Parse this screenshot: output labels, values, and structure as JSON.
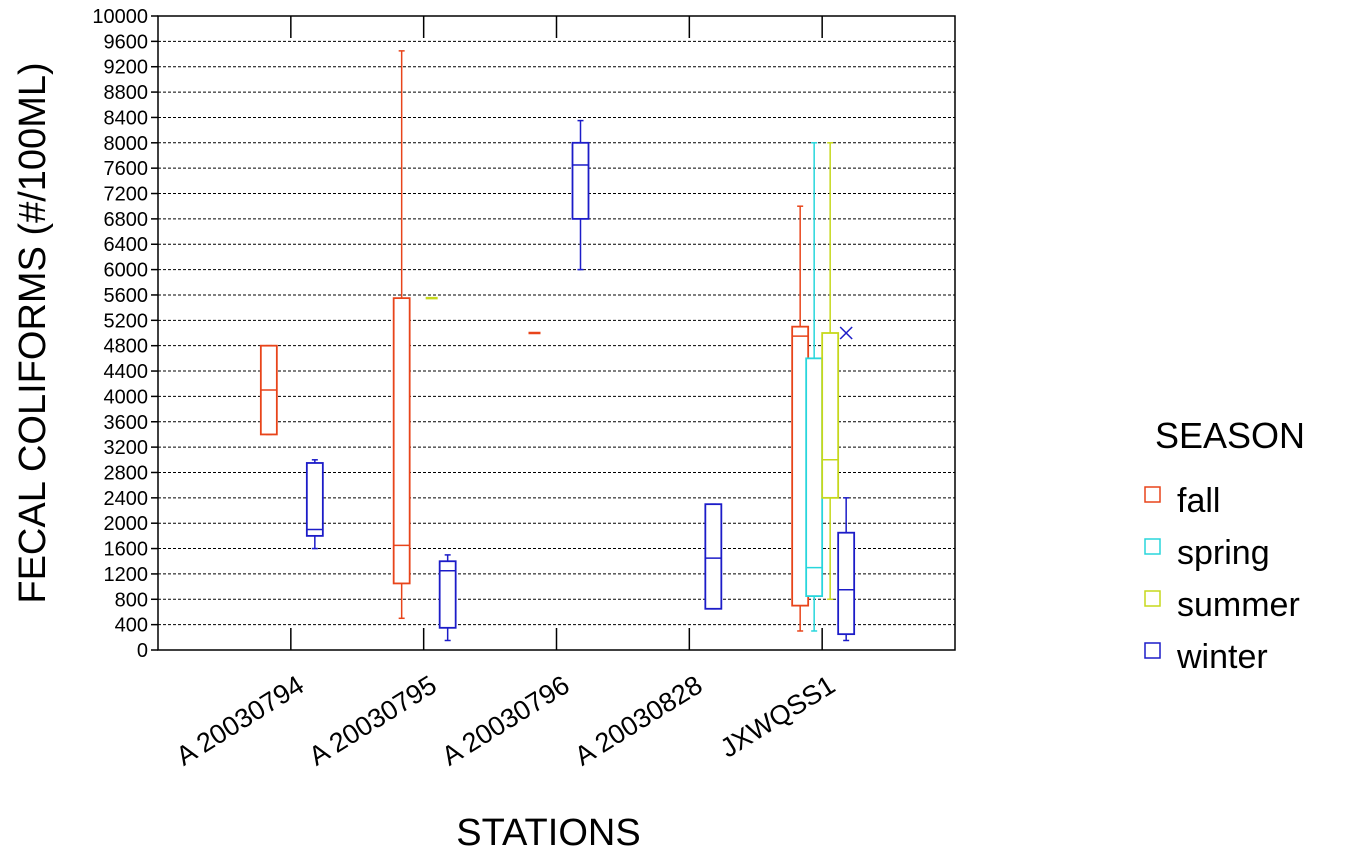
{
  "chart_data": {
    "type": "boxplot",
    "xlabel": "STATIONS",
    "ylabel": "FECAL COLIFORMS (#/100ML)",
    "ylim": [
      0,
      10000
    ],
    "yticks": [
      0,
      400,
      800,
      1200,
      1600,
      2000,
      2400,
      2800,
      3200,
      3600,
      4000,
      4400,
      4800,
      5200,
      5600,
      6000,
      6400,
      6800,
      7200,
      7600,
      8000,
      8400,
      8800,
      9200,
      9600,
      10000
    ],
    "ytick_labels": [
      "0",
      "400",
      "800",
      "1200",
      "1600",
      "2000",
      "2400",
      "2800",
      "3200",
      "3600",
      "4000",
      "4400",
      "4800",
      "5200",
      "5600",
      "6000",
      "6400",
      "6800",
      "7200",
      "7600",
      "8000",
      "8400",
      "8800",
      "9200",
      "9600",
      "10000"
    ],
    "categories": [
      "A 20030794",
      "A 20030795",
      "A 20030796",
      "A 20030828",
      "JXWQSS1"
    ],
    "grid": "horizontal dashed",
    "legend": {
      "title": "SEASON",
      "placement": "right",
      "entries": [
        {
          "name": "fall",
          "color": "#e8441a"
        },
        {
          "name": "spring",
          "color": "#28d6dc"
        },
        {
          "name": "summer",
          "color": "#c6d81c"
        },
        {
          "name": "winter",
          "color": "#1c1cc8"
        }
      ]
    },
    "series": [
      {
        "name": "fall",
        "color": "#e8441a",
        "boxes": [
          {
            "station": "A 20030794",
            "min": 3400,
            "q1": 3400,
            "median": 4100,
            "q3": 4800,
            "max": 4800
          },
          {
            "station": "A 20030795",
            "min": 500,
            "q1": 1050,
            "median": 1650,
            "q3": 5550,
            "max": 9450
          },
          {
            "station": "A 20030796",
            "min": 5000,
            "q1": 5000,
            "median": 5000,
            "q3": 5000,
            "max": 5000
          },
          {
            "station": "JXWQSS1",
            "min": 300,
            "q1": 700,
            "median": 4950,
            "q3": 5100,
            "max": 7000
          }
        ]
      },
      {
        "name": "spring",
        "color": "#28d6dc",
        "boxes": [
          {
            "station": "JXWQSS1",
            "min": 300,
            "q1": 850,
            "median": 1300,
            "q3": 4600,
            "max": 8000
          }
        ]
      },
      {
        "name": "summer",
        "color": "#c6d81c",
        "boxes": [
          {
            "station": "A 20030795",
            "min": 5550,
            "q1": 5550,
            "median": 5550,
            "q3": 5550,
            "max": 5550
          },
          {
            "station": "JXWQSS1",
            "min": 800,
            "q1": 2400,
            "median": 3000,
            "q3": 5000,
            "max": 8000
          }
        ]
      },
      {
        "name": "winter",
        "color": "#1c1cc8",
        "boxes": [
          {
            "station": "A 20030794",
            "min": 1600,
            "q1": 1800,
            "median": 1900,
            "q3": 2950,
            "max": 3000
          },
          {
            "station": "A 20030795",
            "min": 150,
            "q1": 350,
            "median": 1250,
            "q3": 1400,
            "max": 1500
          },
          {
            "station": "A 20030796",
            "min": 6000,
            "q1": 6800,
            "median": 7650,
            "q3": 8000,
            "max": 8350
          },
          {
            "station": "A 20030828",
            "min": 650,
            "q1": 650,
            "median": 1450,
            "q3": 2300,
            "max": 2300
          },
          {
            "station": "JXWQSS1",
            "min": 150,
            "q1": 250,
            "median": 950,
            "q3": 1850,
            "max": 2400,
            "outliers": [
              5000
            ]
          }
        ]
      }
    ]
  }
}
